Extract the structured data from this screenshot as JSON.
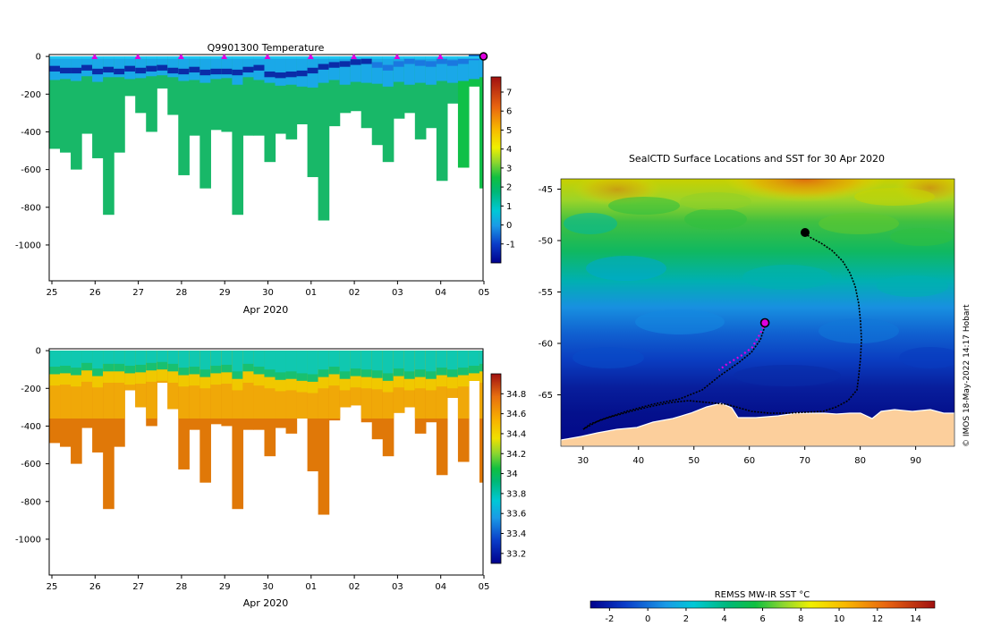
{
  "chart_data": [
    {
      "type": "heatmap",
      "title": "Q9901300  Temperature",
      "xlabel": "Apr 2020",
      "ylabel": "",
      "xticks": [
        "25",
        "26",
        "27",
        "28",
        "29",
        "30",
        "01",
        "02",
        "03",
        "04",
        "05"
      ],
      "yticks": [
        "0",
        "-200",
        "-400",
        "-600",
        "-800",
        "-1000"
      ],
      "yrange": [
        -1190,
        10
      ],
      "colorbar": {
        "min": -2,
        "max": 7.8,
        "ticks": [
          "-1",
          "0",
          "1",
          "2",
          "3",
          "4",
          "5",
          "6",
          "7"
        ]
      },
      "surface_markers_days": [
        1,
        2,
        3,
        4,
        5,
        6,
        7,
        8,
        9,
        10
      ],
      "latest_marker_day": 10,
      "profile_depths_m": [
        490,
        510,
        600,
        410,
        540,
        840,
        510,
        210,
        300,
        400,
        170,
        310,
        630,
        420,
        700,
        390,
        400,
        840,
        420,
        420,
        560,
        410,
        440,
        360,
        640,
        870,
        370,
        300,
        290,
        380,
        470,
        560,
        330,
        300,
        440,
        380,
        660,
        250,
        590,
        160,
        700
      ],
      "shallow_layer_m": [
        125,
        120,
        130,
        105,
        135,
        110,
        110,
        120,
        115,
        105,
        100,
        110,
        130,
        125,
        140,
        120,
        115,
        150,
        110,
        125,
        140,
        155,
        150,
        160,
        165,
        140,
        125,
        150,
        135,
        140,
        145,
        160,
        135,
        150,
        140,
        150,
        130,
        140,
        130,
        120,
        110
      ],
      "cold_core_depth_m": [
        80,
        90,
        90,
        75,
        95,
        85,
        95,
        80,
        90,
        80,
        75,
        90,
        95,
        85,
        100,
        95,
        95,
        100,
        85,
        75,
        110,
        115,
        110,
        105,
        90,
        70,
        60,
        55,
        45,
        40,
        60,
        75,
        55,
        40,
        50,
        55,
        40,
        50,
        40,
        20,
        10
      ]
    },
    {
      "type": "heatmap",
      "title": "",
      "xlabel": "Apr 2020",
      "ylabel": "",
      "xticks": [
        "25",
        "26",
        "27",
        "28",
        "29",
        "30",
        "01",
        "02",
        "03",
        "04",
        "05"
      ],
      "yticks": [
        "0",
        "-200",
        "-400",
        "-600",
        "-800",
        "-1000"
      ],
      "yrange": [
        -1190,
        10
      ],
      "colorbar": {
        "min": 33.1,
        "max": 35.0,
        "ticks": [
          "33.2",
          "33.4",
          "33.6",
          "33.8",
          "34",
          "34.2",
          "34.4",
          "34.6",
          "34.8"
        ]
      }
    },
    {
      "type": "heatmap",
      "title": "SealCTD Surface Locations and SST for 30 Apr 2020",
      "xlabel": "",
      "ylabel": "",
      "xticks": [
        "30",
        "40",
        "50",
        "60",
        "70",
        "80",
        "90"
      ],
      "yticks": [
        "-45",
        "-50",
        "-55",
        "-60",
        "-65"
      ],
      "xrange": [
        26,
        97
      ],
      "yrange": [
        -70,
        -44
      ],
      "colorbar": {
        "label": "REMSS MW-IR SST °C",
        "min": -3,
        "max": 15,
        "ticks": [
          "-2",
          "0",
          "2",
          "4",
          "6",
          "8",
          "10",
          "12",
          "14"
        ]
      },
      "track_current_position": [
        62.8,
        -58.0
      ],
      "track_recent_positions": [
        [
          62.0,
          -59.0
        ],
        [
          60.5,
          -60.4
        ],
        [
          58.5,
          -61.2
        ],
        [
          56.0,
          -62.0
        ],
        [
          54.5,
          -62.6
        ]
      ],
      "credit": "© IMOS 18-May-2022 14:17 Hobart"
    }
  ]
}
